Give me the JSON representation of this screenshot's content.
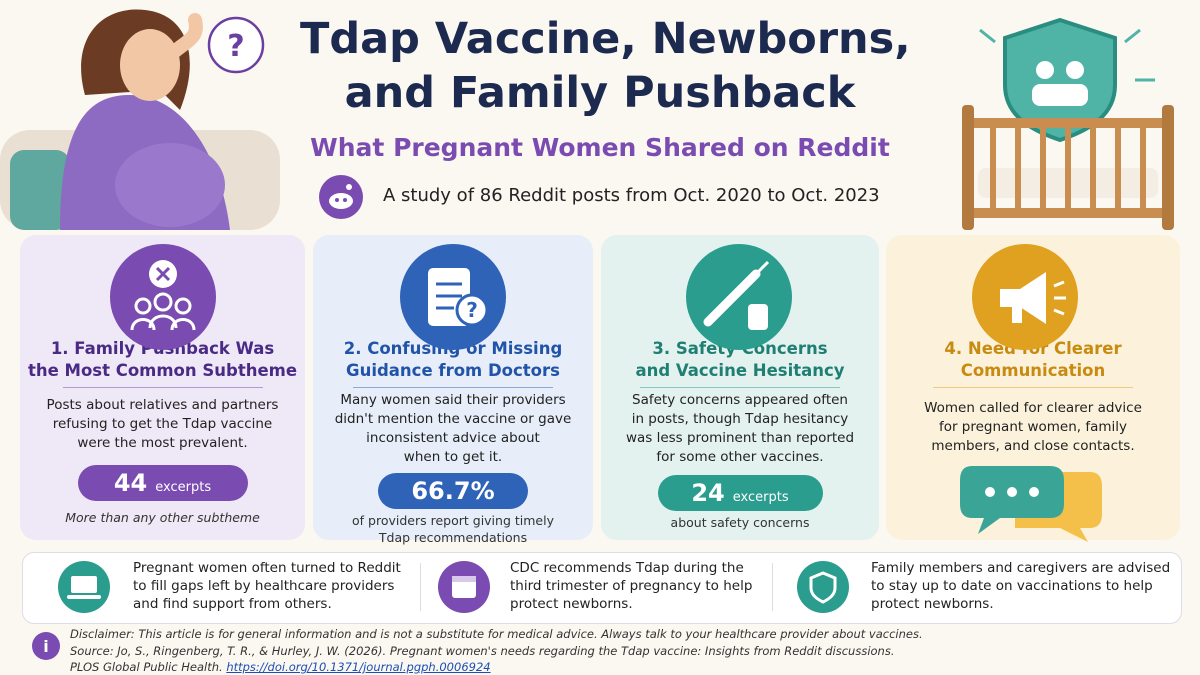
{
  "header": {
    "title_lines": [
      "Tdap Vaccine, Newborns,",
      "and Family Pushback"
    ],
    "subtitle": "What Pregnant Women Shared on Reddit",
    "study": "A study of 86 Reddit posts from Oct. 2020 to Oct. 2023"
  },
  "cards": [
    {
      "heading": [
        "1. Family Pushback Was",
        "the Most Common Subtheme"
      ],
      "body": [
        "Posts about relatives and partners",
        "refusing to get the Tdap vaccine",
        "were the most prevalent."
      ],
      "stat": "44",
      "stat_unit": "excerpts",
      "note": [
        "More than any other subtheme"
      ]
    },
    {
      "heading": [
        "2. Confusing or Missing",
        "Guidance from Doctors"
      ],
      "body": [
        "Many women said their providers",
        "didn't mention the vaccine or gave",
        "inconsistent advice about",
        "when to get it."
      ],
      "stat": "66.7%",
      "note": [
        "of providers report giving timely",
        "Tdap recommendations"
      ]
    },
    {
      "heading": [
        "3. Safety Concerns",
        "and Vaccine Hesitancy"
      ],
      "body": [
        "Safety concerns appeared often",
        "in posts, though Tdap hesitancy",
        "was less prominent than reported",
        "for some other vaccines."
      ],
      "stat": "24",
      "stat_unit": "excerpts",
      "note": [
        "about safety concerns"
      ]
    },
    {
      "heading": [
        "4. Need for Clearer",
        "Communication"
      ],
      "body": [
        "Women called for clearer advice",
        "for pregnant women, family",
        "members, and close contacts."
      ]
    }
  ],
  "facts": [
    {
      "lines": [
        "Pregnant women often turned to Reddit",
        "to fill gaps left by healthcare providers",
        "and find support from others."
      ]
    },
    {
      "lines": [
        "CDC recommends Tdap during the",
        "third trimester of pregnancy to help",
        "protect newborns."
      ]
    },
    {
      "lines": [
        "Family members and caregivers are advised",
        "to stay up to date on vaccinations to help",
        "protect newborns."
      ]
    }
  ],
  "footer": {
    "disclaimer": "Disclaimer: This article is for general information and is not a substitute for medical advice. Always talk to your healthcare provider about vaccines.",
    "source_line1": "Source: Jo, S., Ringenberg, T. R., & Hurley, J. W. (2026). Pregnant women's needs regarding the Tdap vaccine: Insights from Reddit discussions.",
    "source_line2": "PLOS Global Public Health.",
    "link": "https://doi.org/10.1371/journal.pgph.0006924"
  }
}
